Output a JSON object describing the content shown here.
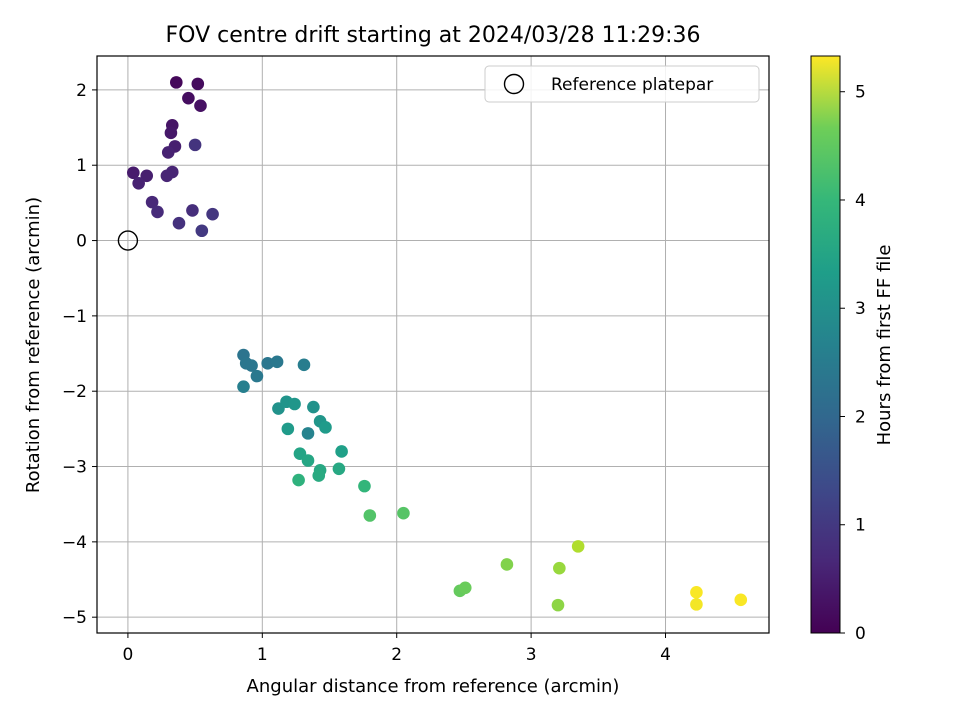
{
  "chart_data": {
    "type": "scatter",
    "title": "FOV centre drift starting at 2024/03/28 11:29:36",
    "xlabel": "Angular distance from reference (arcmin)",
    "ylabel": "Rotation from reference (arcmin)",
    "xlim": [
      -0.23,
      4.77
    ],
    "ylim": [
      -5.21,
      2.45
    ],
    "xticks": [
      0,
      1,
      2,
      3,
      4
    ],
    "yticks": [
      -5,
      -4,
      -3,
      -2,
      -1,
      0,
      1,
      2
    ],
    "grid": true,
    "colormap": "viridis",
    "colorbar": {
      "label": "Hours from first FF file",
      "min": 0,
      "max": 5.33,
      "ticks": [
        0,
        1,
        2,
        3,
        4,
        5
      ]
    },
    "legend": {
      "placement": "top-right",
      "entries": [
        {
          "label": "Reference platepar",
          "marker": "hollow-circle"
        }
      ]
    },
    "reference_point": {
      "x": 0,
      "y": 0
    },
    "series": [
      {
        "points": [
          {
            "x": 0.36,
            "y": 2.1,
            "c": 0.1
          },
          {
            "x": 0.52,
            "y": 2.08,
            "c": 0.15
          },
          {
            "x": 0.45,
            "y": 1.89,
            "c": 0.2
          },
          {
            "x": 0.54,
            "y": 1.79,
            "c": 0.25
          },
          {
            "x": 0.33,
            "y": 1.53,
            "c": 0.3
          },
          {
            "x": 0.32,
            "y": 1.43,
            "c": 0.35
          },
          {
            "x": 0.35,
            "y": 1.25,
            "c": 0.45
          },
          {
            "x": 0.3,
            "y": 1.17,
            "c": 0.5
          },
          {
            "x": 0.5,
            "y": 1.27,
            "c": 0.8
          },
          {
            "x": 0.33,
            "y": 0.91,
            "c": 0.55
          },
          {
            "x": 0.29,
            "y": 0.86,
            "c": 0.55
          },
          {
            "x": 0.04,
            "y": 0.9,
            "c": 0.4
          },
          {
            "x": 0.14,
            "y": 0.86,
            "c": 0.45
          },
          {
            "x": 0.08,
            "y": 0.76,
            "c": 0.5
          },
          {
            "x": 0.18,
            "y": 0.51,
            "c": 0.6
          },
          {
            "x": 0.22,
            "y": 0.38,
            "c": 0.65
          },
          {
            "x": 0.48,
            "y": 0.4,
            "c": 0.7
          },
          {
            "x": 0.38,
            "y": 0.23,
            "c": 0.75
          },
          {
            "x": 0.63,
            "y": 0.35,
            "c": 0.85
          },
          {
            "x": 0.55,
            "y": 0.13,
            "c": 0.9
          },
          {
            "x": 0.86,
            "y": -1.52,
            "c": 2.05
          },
          {
            "x": 0.88,
            "y": -1.63,
            "c": 2.1
          },
          {
            "x": 0.92,
            "y": -1.66,
            "c": 2.1
          },
          {
            "x": 0.96,
            "y": -1.8,
            "c": 2.15
          },
          {
            "x": 1.04,
            "y": -1.63,
            "c": 2.1
          },
          {
            "x": 1.11,
            "y": -1.61,
            "c": 2.15
          },
          {
            "x": 1.31,
            "y": -1.65,
            "c": 2.25
          },
          {
            "x": 0.86,
            "y": -1.94,
            "c": 2.3
          },
          {
            "x": 1.12,
            "y": -2.23,
            "c": 2.7
          },
          {
            "x": 1.18,
            "y": -2.14,
            "c": 2.75
          },
          {
            "x": 1.24,
            "y": -2.17,
            "c": 2.8
          },
          {
            "x": 1.38,
            "y": -2.21,
            "c": 2.7
          },
          {
            "x": 1.43,
            "y": -2.4,
            "c": 2.8
          },
          {
            "x": 1.47,
            "y": -2.48,
            "c": 2.9
          },
          {
            "x": 1.19,
            "y": -2.5,
            "c": 2.9
          },
          {
            "x": 1.34,
            "y": -2.56,
            "c": 2.4
          },
          {
            "x": 1.59,
            "y": -2.8,
            "c": 3.0
          },
          {
            "x": 1.28,
            "y": -2.83,
            "c": 3.1
          },
          {
            "x": 1.34,
            "y": -2.92,
            "c": 3.15
          },
          {
            "x": 1.43,
            "y": -3.05,
            "c": 3.2
          },
          {
            "x": 1.42,
            "y": -3.12,
            "c": 3.25
          },
          {
            "x": 1.57,
            "y": -3.03,
            "c": 3.2
          },
          {
            "x": 1.27,
            "y": -3.18,
            "c": 3.4
          },
          {
            "x": 1.76,
            "y": -3.26,
            "c": 3.5
          },
          {
            "x": 1.8,
            "y": -3.65,
            "c": 3.85
          },
          {
            "x": 2.05,
            "y": -3.62,
            "c": 3.9
          },
          {
            "x": 2.47,
            "y": -4.65,
            "c": 4.05
          },
          {
            "x": 2.51,
            "y": -4.61,
            "c": 4.1
          },
          {
            "x": 2.82,
            "y": -4.3,
            "c": 4.3
          },
          {
            "x": 3.21,
            "y": -4.35,
            "c": 4.5
          },
          {
            "x": 3.35,
            "y": -4.06,
            "c": 4.7
          },
          {
            "x": 3.2,
            "y": -4.84,
            "c": 4.4
          },
          {
            "x": 4.23,
            "y": -4.67,
            "c": 5.3
          },
          {
            "x": 4.23,
            "y": -4.83,
            "c": 5.25
          },
          {
            "x": 4.56,
            "y": -4.77,
            "c": 5.3
          }
        ]
      }
    ]
  }
}
